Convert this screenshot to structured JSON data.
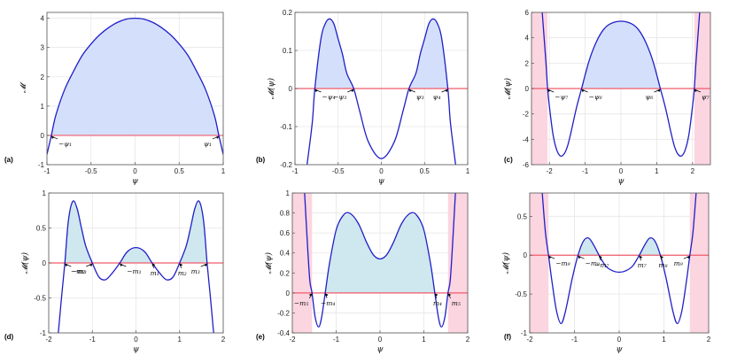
{
  "colors": {
    "curve": "#1f1fc8",
    "zero_line": "#f05a6a",
    "fill_blue": "#d4e0fb",
    "fill_teal": "#cfe7ee",
    "fill_pink": "#fbd5e0",
    "grid": "#e6e6e6",
    "axes": "#555555"
  },
  "chart_data": [
    {
      "id": "a",
      "type": "line",
      "panel_label": "(a)",
      "xlabel": "ψ",
      "ylabel": "𝓜",
      "xlim": [
        -1,
        1
      ],
      "ylim": [
        -1,
        4.2
      ],
      "xticks": [
        -1,
        -0.5,
        0,
        0.5,
        1
      ],
      "xtick_labels": [
        "-1",
        "-0.5",
        "0",
        "0.5",
        "1"
      ],
      "yticks": [
        -1,
        0,
        1,
        2,
        3,
        4
      ],
      "ytick_labels": [
        "-1",
        "0",
        "1",
        "2",
        "3",
        "4"
      ],
      "grid": true,
      "series": [
        {
          "x": [
            -1,
            -0.95,
            -0.9,
            -0.8,
            -0.7,
            -0.6,
            -0.5,
            -0.4,
            -0.3,
            -0.2,
            -0.1,
            0,
            0.1,
            0.2,
            0.3,
            0.4,
            0.5,
            0.6,
            0.7,
            0.8,
            0.9,
            0.95,
            1
          ],
          "y": [
            -0.65,
            0.0,
            0.68,
            1.56,
            2.18,
            2.73,
            3.12,
            3.44,
            3.68,
            3.86,
            3.97,
            4.0,
            3.97,
            3.86,
            3.68,
            3.44,
            3.12,
            2.73,
            2.18,
            1.56,
            0.68,
            0.0,
            -0.65
          ]
        }
      ],
      "shaded": [
        {
          "from": -0.95,
          "to": 0.95,
          "kind": "blue"
        }
      ],
      "annotations": [
        {
          "x": -0.95,
          "text": "−ψ₁",
          "side": "right"
        },
        {
          "x": 0.95,
          "text": "ψ₁",
          "side": "left"
        }
      ]
    },
    {
      "id": "b",
      "type": "line",
      "panel_label": "(b)",
      "xlabel": "ψ",
      "ylabel": "𝓜(ψ)",
      "xlim": [
        -1,
        1
      ],
      "ylim": [
        -0.2,
        0.2
      ],
      "xticks": [
        -1,
        -0.5,
        0,
        0.5,
        1
      ],
      "xtick_labels": [
        "-1",
        "-0.5",
        "0",
        "0.5",
        "1"
      ],
      "yticks": [
        -0.2,
        -0.1,
        0,
        0.1,
        0.2
      ],
      "ytick_labels": [
        "-0.2",
        "-0.1",
        "0",
        "0.1",
        "0.2"
      ],
      "grid": true,
      "series": [
        {
          "x": [
            -0.86,
            -0.8,
            -0.77,
            -0.7,
            -0.65,
            -0.6,
            -0.55,
            -0.5,
            -0.45,
            -0.4,
            -0.32,
            -0.25,
            -0.15,
            0,
            0.15,
            0.25,
            0.32,
            0.4,
            0.45,
            0.5,
            0.55,
            0.6,
            0.65,
            0.7,
            0.77,
            0.8,
            0.86
          ],
          "y": [
            -0.2,
            -0.09,
            0.0,
            0.13,
            0.17,
            0.183,
            0.17,
            0.13,
            0.09,
            0.04,
            0.0,
            -0.06,
            -0.14,
            -0.184,
            -0.14,
            -0.06,
            0.0,
            0.04,
            0.09,
            0.13,
            0.17,
            0.183,
            0.17,
            0.13,
            0.0,
            -0.09,
            -0.2
          ]
        }
      ],
      "shaded": [
        {
          "from": -0.77,
          "to": -0.32,
          "kind": "blue"
        },
        {
          "from": 0.32,
          "to": 0.77,
          "kind": "blue"
        }
      ],
      "annotations": [
        {
          "x": -0.77,
          "text": "−ψ₄",
          "side": "right"
        },
        {
          "x": -0.32,
          "text": "−ψ₃",
          "side": "left"
        },
        {
          "x": 0.32,
          "text": "ψ₃",
          "side": "right"
        },
        {
          "x": 0.77,
          "text": "ψ₄",
          "side": "left"
        }
      ]
    },
    {
      "id": "c",
      "type": "line",
      "panel_label": "(c)",
      "xlabel": "ψ",
      "ylabel": "𝓜(ψ)",
      "xlim": [
        -2.5,
        2.5
      ],
      "ylim": [
        -6,
        6
      ],
      "xticks": [
        -2,
        -1,
        0,
        1,
        2
      ],
      "xtick_labels": [
        "-2",
        "-1",
        "0",
        "1",
        "2"
      ],
      "yticks": [
        -6,
        -4,
        -2,
        0,
        2,
        4,
        6
      ],
      "ytick_labels": [
        "-6",
        "-4",
        "-2",
        "0",
        "2",
        "4",
        "6"
      ],
      "grid": true,
      "series": [
        {
          "x": [
            -2.2,
            -2.1,
            -2.05,
            -2.0,
            -1.9,
            -1.8,
            -1.7,
            -1.6,
            -1.5,
            -1.4,
            -1.25,
            -1.1,
            -0.9,
            -0.7,
            -0.5,
            -0.3,
            0,
            0.3,
            0.5,
            0.7,
            0.9,
            1.1,
            1.25,
            1.4,
            1.5,
            1.6,
            1.7,
            1.8,
            1.9,
            2.0,
            2.05,
            2.1,
            2.2
          ],
          "y": [
            6,
            2.2,
            0.0,
            -1.4,
            -3.6,
            -4.8,
            -5.3,
            -5.2,
            -4.6,
            -3.5,
            -1.6,
            0.0,
            2.1,
            3.6,
            4.6,
            5.1,
            5.3,
            5.1,
            4.6,
            3.6,
            2.1,
            0.0,
            -1.6,
            -3.5,
            -4.6,
            -5.2,
            -5.3,
            -4.8,
            -3.6,
            -1.4,
            0.0,
            2.2,
            6
          ]
        }
      ],
      "shaded": [
        {
          "from": -2.5,
          "to": -2.05,
          "kind": "pink_full"
        },
        {
          "from": 2.05,
          "to": 2.5,
          "kind": "pink_full"
        },
        {
          "from": -2.2,
          "to": -2.05,
          "kind": "pink_curve"
        },
        {
          "from": -1.1,
          "to": 1.1,
          "kind": "blue"
        }
      ],
      "annotations": [
        {
          "x": -2.05,
          "text": "−ψ₇",
          "side": "right"
        },
        {
          "x": -1.1,
          "text": "−ψ₆",
          "side": "right"
        },
        {
          "x": 1.1,
          "text": "ψ₆",
          "side": "left"
        },
        {
          "x": 2.05,
          "text": "ψ₇",
          "side": "right"
        }
      ]
    },
    {
      "id": "d",
      "type": "line",
      "panel_label": "(d)",
      "xlabel": "ψ",
      "ylabel": "𝓜(ψ)",
      "xlim": [
        -2,
        2
      ],
      "ylim": [
        -1,
        1
      ],
      "xticks": [
        -2,
        -1,
        0,
        1,
        2
      ],
      "xtick_labels": [
        "-2",
        "-1",
        "0",
        "1",
        "2"
      ],
      "yticks": [
        -1,
        -0.5,
        0,
        0.5,
        1
      ],
      "ytick_labels": [
        "-1",
        "-0.5",
        "0",
        "0.5",
        "1"
      ],
      "grid": true,
      "series": [
        {
          "x": [
            -1.78,
            -1.7,
            -1.63,
            -1.55,
            -1.45,
            -1.35,
            -1.25,
            -1.15,
            -1.0,
            -0.85,
            -0.7,
            -0.55,
            -0.37,
            -0.2,
            0,
            0.2,
            0.37,
            0.55,
            0.7,
            0.85,
            1.0,
            1.15,
            1.25,
            1.35,
            1.45,
            1.55,
            1.63,
            1.7,
            1.78
          ],
          "y": [
            -1,
            -0.45,
            0.0,
            0.6,
            0.88,
            0.78,
            0.5,
            0.24,
            0.0,
            -0.2,
            -0.24,
            -0.15,
            0.0,
            0.16,
            0.22,
            0.16,
            0.0,
            -0.15,
            -0.24,
            -0.2,
            0.0,
            0.24,
            0.5,
            0.78,
            0.88,
            0.6,
            0.0,
            -0.45,
            -1
          ]
        }
      ],
      "shaded": [
        {
          "from": -1.63,
          "to": -1.0,
          "kind": "teal"
        },
        {
          "from": -0.37,
          "to": 0.37,
          "kind": "teal"
        },
        {
          "from": 1.0,
          "to": 1.63,
          "kind": "teal"
        }
      ],
      "annotations": [
        {
          "x": -1.63,
          "text": "−m₃",
          "side": "right"
        },
        {
          "x": -1.0,
          "text": "−m₂",
          "side": "left"
        },
        {
          "x": -0.37,
          "text": "−m₁",
          "side": "right"
        },
        {
          "x": 0.37,
          "text": "m₁",
          "side": "below"
        },
        {
          "x": 1.0,
          "text": "m₂",
          "side": "below"
        },
        {
          "x": 1.63,
          "text": "m₃",
          "side": "left"
        }
      ]
    },
    {
      "id": "e",
      "type": "line",
      "panel_label": "(e)",
      "xlabel": "ψ",
      "ylabel": "𝓜(ψ)",
      "xlim": [
        -2,
        2
      ],
      "ylim": [
        -0.4,
        1
      ],
      "xticks": [
        -2,
        -1,
        0,
        1,
        2
      ],
      "xtick_labels": [
        "-2",
        "-1",
        "0",
        "1",
        "2"
      ],
      "yticks": [
        -0.4,
        -0.2,
        0,
        0.2,
        0.4,
        0.6,
        0.8,
        1
      ],
      "ytick_labels": [
        "-0.4",
        "-0.2",
        "0",
        "0.2",
        "0.4",
        "0.6",
        "0.8",
        "1"
      ],
      "grid": true,
      "series": [
        {
          "x": [
            -1.72,
            -1.65,
            -1.6,
            -1.55,
            -1.48,
            -1.4,
            -1.33,
            -1.25,
            -1.15,
            -1.0,
            -0.85,
            -0.7,
            -0.5,
            -0.3,
            -0.15,
            0,
            0.15,
            0.3,
            0.5,
            0.7,
            0.85,
            1.0,
            1.15,
            1.25,
            1.33,
            1.4,
            1.48,
            1.55,
            1.6,
            1.65,
            1.72
          ],
          "y": [
            1,
            0.45,
            0.12,
            0.0,
            -0.24,
            -0.34,
            -0.24,
            0.0,
            0.3,
            0.63,
            0.77,
            0.8,
            0.7,
            0.5,
            0.38,
            0.34,
            0.38,
            0.5,
            0.7,
            0.8,
            0.77,
            0.63,
            0.3,
            0.0,
            -0.24,
            -0.34,
            -0.24,
            0.0,
            0.12,
            0.45,
            1
          ]
        }
      ],
      "shaded": [
        {
          "from": -2,
          "to": -1.55,
          "kind": "pink_full"
        },
        {
          "from": 1.55,
          "to": 2,
          "kind": "pink_full"
        },
        {
          "from": -1.25,
          "to": 1.25,
          "kind": "teal"
        }
      ],
      "annotations": [
        {
          "x": -1.55,
          "text": "−m₅",
          "side": "below_left"
        },
        {
          "x": -1.25,
          "text": "−m₄",
          "side": "below"
        },
        {
          "x": 1.25,
          "text": "m₄",
          "side": "below"
        },
        {
          "x": 1.55,
          "text": "m₅",
          "side": "below_right"
        }
      ]
    },
    {
      "id": "f",
      "type": "line",
      "panel_label": "(f)",
      "xlabel": "ψ",
      "ylabel": "𝓜(ψ)",
      "xlim": [
        -2,
        2
      ],
      "ylim": [
        -1,
        0.8
      ],
      "xticks": [
        -2,
        -1,
        0,
        1,
        2
      ],
      "xtick_labels": [
        "-2",
        "-1",
        "0",
        "1",
        "2"
      ],
      "yticks": [
        -1,
        -0.5,
        0,
        0.5
      ],
      "ytick_labels": [
        "-1",
        "-0.5",
        "0",
        "0.5"
      ],
      "grid": true,
      "series": [
        {
          "x": [
            -1.72,
            -1.65,
            -1.58,
            -1.5,
            -1.4,
            -1.3,
            -1.2,
            -1.05,
            -0.92,
            -0.8,
            -0.68,
            -0.56,
            -0.45,
            -0.3,
            -0.15,
            0,
            0.15,
            0.3,
            0.45,
            0.56,
            0.68,
            0.8,
            0.92,
            1.05,
            1.2,
            1.3,
            1.4,
            1.5,
            1.58,
            1.65,
            1.72
          ],
          "y": [
            0.8,
            0.3,
            0.0,
            -0.35,
            -0.72,
            -0.88,
            -0.72,
            -0.3,
            0.0,
            0.18,
            0.22,
            0.12,
            0.0,
            -0.14,
            -0.2,
            -0.22,
            -0.2,
            -0.14,
            0.0,
            0.12,
            0.22,
            0.18,
            0.0,
            -0.3,
            -0.72,
            -0.88,
            -0.72,
            -0.35,
            0.0,
            0.3,
            0.8
          ]
        }
      ],
      "shaded": [
        {
          "from": -2,
          "to": -1.58,
          "kind": "pink_full"
        },
        {
          "from": 1.58,
          "to": 2,
          "kind": "pink_full"
        },
        {
          "from": -0.92,
          "to": -0.45,
          "kind": "teal"
        },
        {
          "from": 0.45,
          "to": 0.92,
          "kind": "teal"
        }
      ],
      "annotations": [
        {
          "x": -1.58,
          "text": "−m₉",
          "side": "right"
        },
        {
          "x": -0.92,
          "text": "−m₈",
          "side": "right"
        },
        {
          "x": -0.45,
          "text": "−m₇",
          "side": "below"
        },
        {
          "x": 0.45,
          "text": "m₇",
          "side": "below"
        },
        {
          "x": 0.92,
          "text": "m₈",
          "side": "below"
        },
        {
          "x": 1.58,
          "text": "m₉",
          "side": "left"
        }
      ]
    }
  ]
}
